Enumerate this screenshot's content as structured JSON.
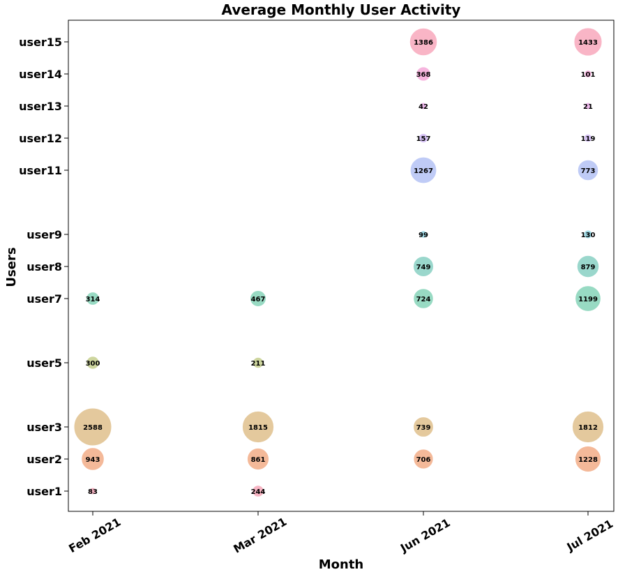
{
  "chart_data": {
    "type": "scatter",
    "subtype": "bubble",
    "title": "Average Monthly User Activity",
    "xlabel": "Month",
    "ylabel": "Users",
    "categories": [
      "Feb 2021",
      "Mar 2021",
      "Jun 2021",
      "Jul 2021"
    ],
    "y_categories": [
      "user1",
      "user2",
      "user3",
      "user5",
      "user7",
      "user8",
      "user9",
      "user11",
      "user12",
      "user13",
      "user14",
      "user15"
    ],
    "grid": false,
    "legend": "none",
    "series": [
      {
        "user": "user1",
        "color": "#f4a7b9",
        "values": [
          83,
          244,
          null,
          null
        ]
      },
      {
        "user": "user2",
        "color": "#f2ad87",
        "values": [
          943,
          861,
          706,
          1228
        ]
      },
      {
        "user": "user3",
        "color": "#dfc08c",
        "values": [
          2588,
          1815,
          739,
          1812
        ]
      },
      {
        "user": "user5",
        "color": "#c5cf8e",
        "values": [
          300,
          211,
          null,
          null
        ]
      },
      {
        "user": "user7",
        "color": "#86d4b8",
        "values": [
          314,
          467,
          724,
          1199
        ]
      },
      {
        "user": "user8",
        "color": "#88d0c3",
        "values": [
          null,
          null,
          749,
          879
        ]
      },
      {
        "user": "user9",
        "color": "#8fd3e2",
        "values": [
          null,
          null,
          99,
          130
        ]
      },
      {
        "user": "user11",
        "color": "#b4c2f5",
        "values": [
          null,
          null,
          1267,
          773
        ]
      },
      {
        "user": "user12",
        "color": "#d0b9f3",
        "values": [
          null,
          null,
          157,
          119
        ]
      },
      {
        "user": "user13",
        "color": "#eeb0ec",
        "values": [
          null,
          null,
          42,
          21
        ]
      },
      {
        "user": "user14",
        "color": "#f5a8d8",
        "values": [
          null,
          null,
          368,
          101
        ]
      },
      {
        "user": "user15",
        "color": "#f8a8bc",
        "values": [
          null,
          null,
          1386,
          1433
        ]
      }
    ]
  }
}
